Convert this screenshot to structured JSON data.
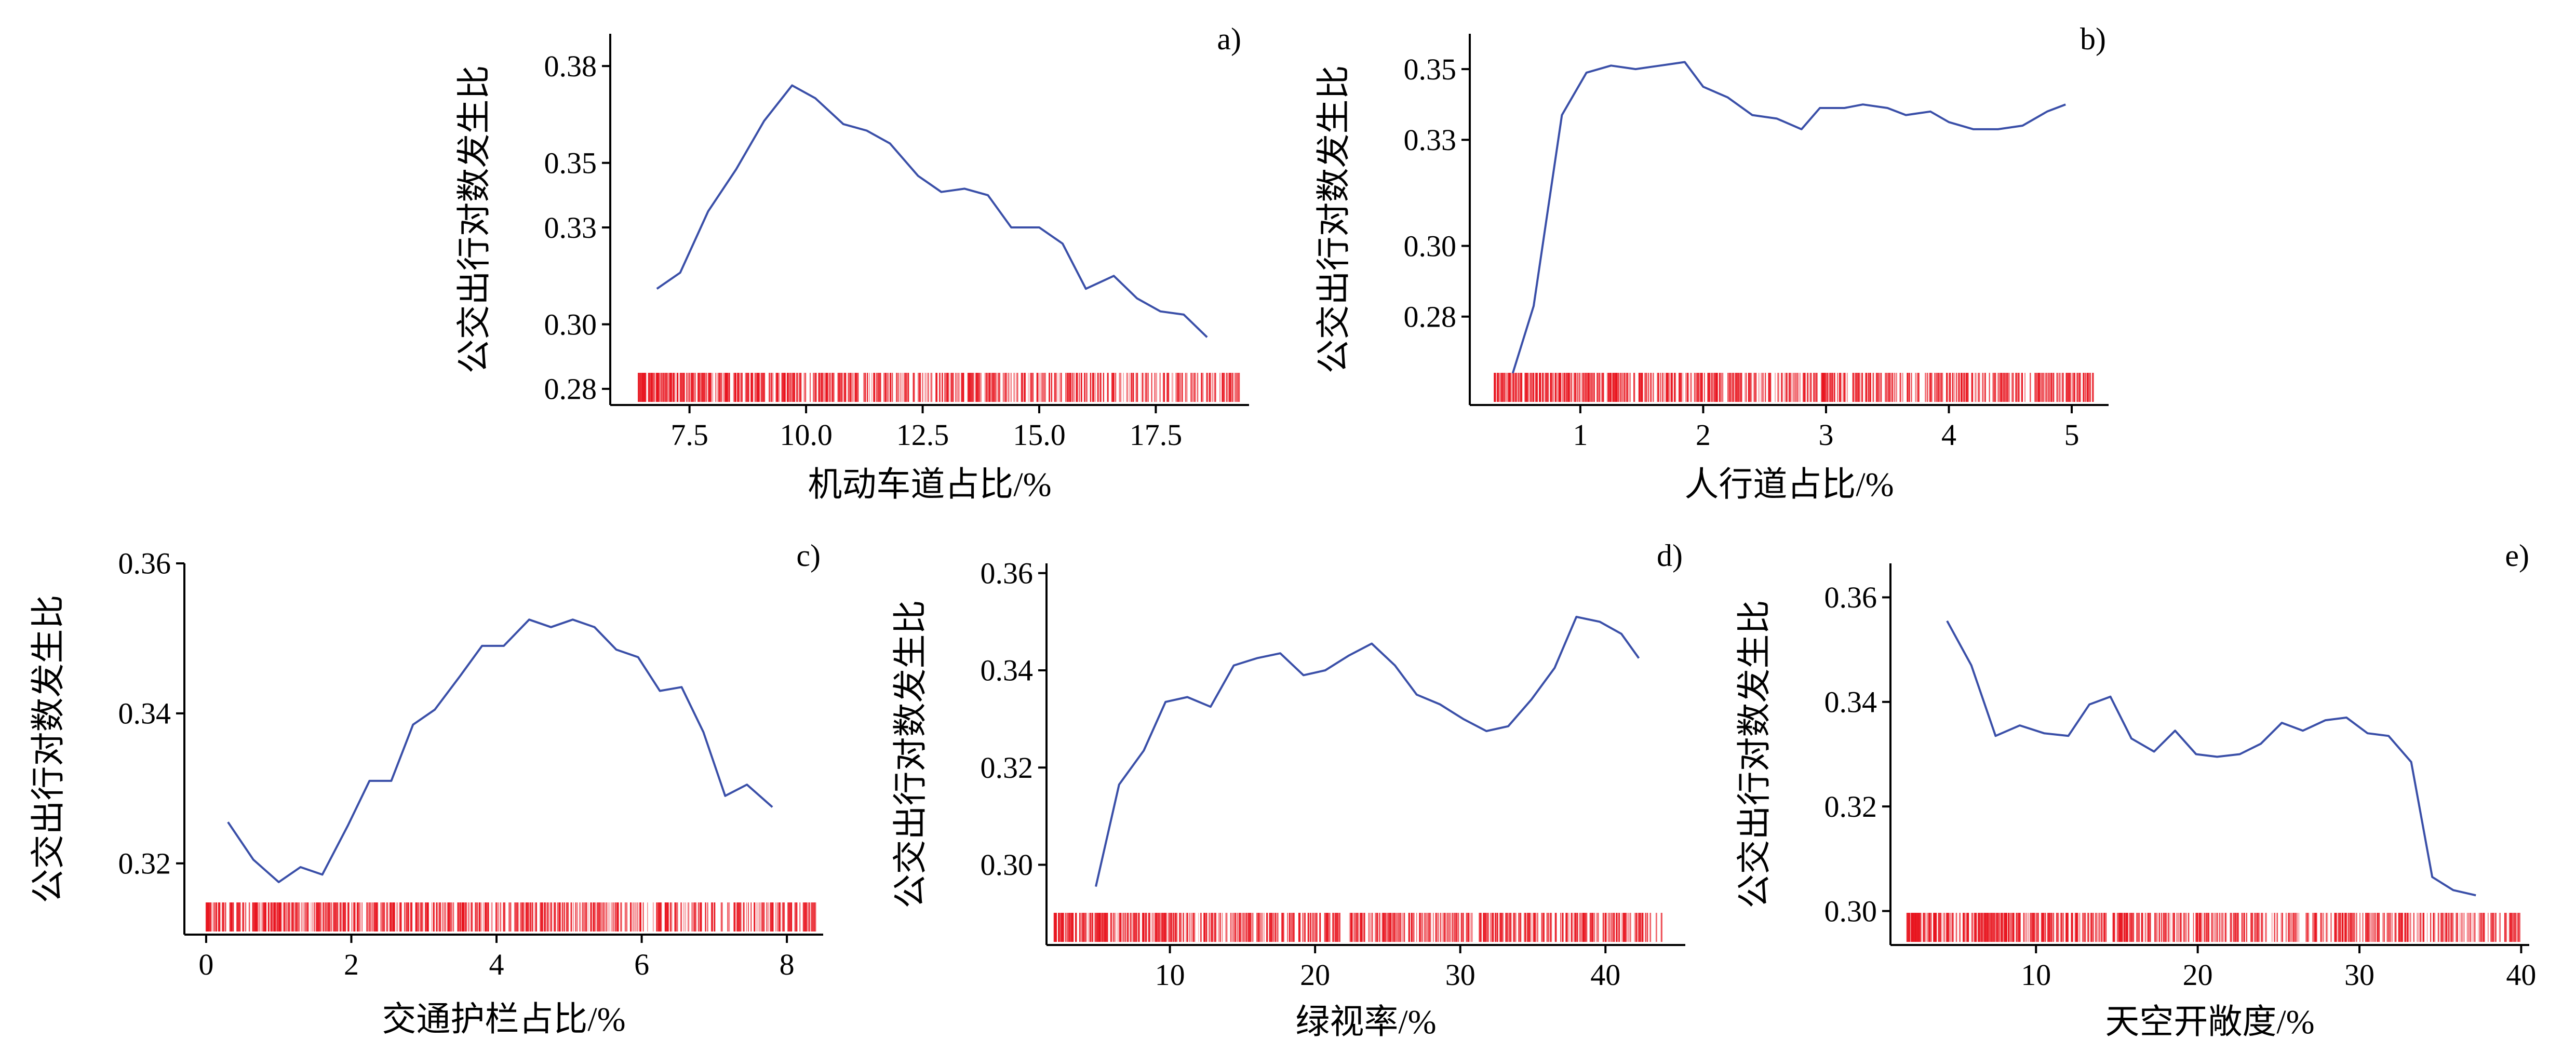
{
  "figure": {
    "y_axis_label_all": "公交出行对数发生比"
  },
  "chart_data": [
    {
      "id": "a",
      "type": "line",
      "panel_label": "a)",
      "xlabel": "机动车道占比/%",
      "ylabel": "公交出行对数发生比",
      "xlim": [
        5.8,
        19.5
      ],
      "ylim": [
        0.275,
        0.39
      ],
      "xticks": [
        7.5,
        10.0,
        12.5,
        15.0,
        17.5
      ],
      "xtick_labels": [
        "7.5",
        "10.0",
        "12.5",
        "15.0",
        "17.5"
      ],
      "yticks": [
        0.28,
        0.3,
        0.33,
        0.35,
        0.38
      ],
      "ytick_labels": [
        "0.28",
        "0.30",
        "0.33",
        "0.35",
        "0.38"
      ],
      "line_color": "#3a4fa8",
      "rug_color": "#e8141e",
      "series": [
        {
          "x": [
            6.8,
            7.3,
            7.9,
            8.5,
            9.1,
            9.7,
            10.2,
            10.8,
            11.3,
            11.8,
            12.4,
            12.9,
            13.4,
            13.9,
            14.4,
            15.0,
            15.5,
            16.0,
            16.6,
            17.1,
            17.6,
            18.1,
            18.6
          ],
          "y": [
            0.311,
            0.316,
            0.335,
            0.348,
            0.363,
            0.374,
            0.37,
            0.362,
            0.36,
            0.356,
            0.346,
            0.341,
            0.342,
            0.34,
            0.33,
            0.33,
            0.325,
            0.311,
            0.315,
            0.308,
            0.304,
            0.303,
            0.296
          ]
        }
      ],
      "rug_range": [
        6.4,
        19.3
      ]
    },
    {
      "id": "b",
      "type": "line",
      "panel_label": "b)",
      "xlabel": "人行道占比/%",
      "ylabel": "公交出行对数发生比",
      "xlim": [
        0.1,
        5.3
      ],
      "ylim": [
        0.255,
        0.36
      ],
      "xticks": [
        1,
        2,
        3,
        4,
        5
      ],
      "xtick_labels": [
        "1",
        "2",
        "3",
        "4",
        "5"
      ],
      "yticks": [
        0.28,
        0.3,
        0.33,
        0.35
      ],
      "ytick_labels": [
        "0.28",
        "0.30",
        "0.33",
        "0.35"
      ],
      "line_color": "#3a4fa8",
      "rug_color": "#e8141e",
      "series": [
        {
          "x": [
            0.45,
            0.62,
            0.85,
            1.05,
            1.25,
            1.45,
            1.65,
            1.85,
            2.0,
            2.2,
            2.4,
            2.6,
            2.8,
            2.95,
            3.15,
            3.3,
            3.5,
            3.65,
            3.85,
            4.0,
            4.2,
            4.4,
            4.6,
            4.8,
            4.95
          ],
          "y": [
            0.264,
            0.283,
            0.337,
            0.349,
            0.351,
            0.35,
            0.351,
            0.352,
            0.345,
            0.342,
            0.337,
            0.336,
            0.333,
            0.339,
            0.339,
            0.34,
            0.339,
            0.337,
            0.338,
            0.335,
            0.333,
            0.333,
            0.334,
            0.338,
            0.34
          ]
        }
      ],
      "rug_range": [
        0.3,
        5.2
      ]
    },
    {
      "id": "c",
      "type": "line",
      "panel_label": "c)",
      "xlabel": "交通护栏占比/%",
      "ylabel": "公交出行对数发生比",
      "xlim": [
        -0.3,
        8.5
      ],
      "ylim": [
        0.3105,
        0.36
      ],
      "xticks": [
        0,
        2,
        4,
        6,
        8
      ],
      "xtick_labels": [
        "0",
        "2",
        "4",
        "6",
        "8"
      ],
      "yticks": [
        0.32,
        0.34,
        0.36
      ],
      "ytick_labels": [
        "0.32",
        "0.34",
        "0.36"
      ],
      "line_color": "#3a4fa8",
      "rug_color": "#e8141e",
      "series": [
        {
          "x": [
            0.3,
            0.65,
            1.0,
            1.3,
            1.6,
            1.95,
            2.25,
            2.55,
            2.85,
            3.15,
            3.5,
            3.8,
            4.1,
            4.45,
            4.75,
            5.05,
            5.35,
            5.65,
            5.95,
            6.25,
            6.55,
            6.85,
            7.15,
            7.45,
            7.8
          ],
          "y": [
            0.3255,
            0.3205,
            0.3175,
            0.3195,
            0.3185,
            0.325,
            0.331,
            0.331,
            0.3385,
            0.3405,
            0.345,
            0.349,
            0.349,
            0.3525,
            0.3515,
            0.3525,
            0.3515,
            0.3485,
            0.3475,
            0.343,
            0.3435,
            0.3375,
            0.329,
            0.3305,
            0.3275
          ]
        }
      ],
      "rug_range": [
        0.0,
        8.4
      ]
    },
    {
      "id": "d",
      "type": "line",
      "panel_label": "d)",
      "xlabel": "绿视率/%",
      "ylabel": "公交出行对数发生比",
      "xlim": [
        1.5,
        45.5
      ],
      "ylim": [
        0.2835,
        0.362
      ],
      "xticks": [
        10,
        20,
        30,
        40
      ],
      "xtick_labels": [
        "10",
        "20",
        "30",
        "40"
      ],
      "yticks": [
        0.3,
        0.32,
        0.34,
        0.36
      ],
      "ytick_labels": [
        "0.30",
        "0.32",
        "0.34",
        "0.36"
      ],
      "line_color": "#3a4fa8",
      "rug_color": "#e8141e",
      "series": [
        {
          "x": [
            4.9,
            6.5,
            8.2,
            9.7,
            11.2,
            12.8,
            14.4,
            16.0,
            17.6,
            19.2,
            20.7,
            22.3,
            23.9,
            25.5,
            27.0,
            28.6,
            30.2,
            31.8,
            33.3,
            34.9,
            36.5,
            38.0,
            39.6,
            41.1,
            42.3
          ],
          "y": [
            0.2955,
            0.3165,
            0.3235,
            0.3335,
            0.3345,
            0.3325,
            0.341,
            0.3425,
            0.3435,
            0.339,
            0.34,
            0.343,
            0.3455,
            0.341,
            0.335,
            0.333,
            0.33,
            0.3275,
            0.3285,
            0.334,
            0.3405,
            0.351,
            0.35,
            0.3475,
            0.3425
          ]
        }
      ],
      "rug_range": [
        2.0,
        44.0
      ]
    },
    {
      "id": "e",
      "type": "line",
      "panel_label": "e)",
      "xlabel": "天空开敞度/%",
      "ylabel": "公交出行对数发生比",
      "xlim": [
        1.0,
        40.5
      ],
      "ylim": [
        0.2935,
        0.3665
      ],
      "xticks": [
        10,
        20,
        30,
        40
      ],
      "xtick_labels": [
        "10",
        "20",
        "30",
        "40"
      ],
      "yticks": [
        0.3,
        0.32,
        0.34,
        0.36
      ],
      "ytick_labels": [
        "0.30",
        "0.32",
        "0.34",
        "0.36"
      ],
      "line_color": "#3a4fa8",
      "rug_color": "#e8141e",
      "series": [
        {
          "x": [
            4.5,
            6.0,
            7.5,
            9.0,
            10.5,
            12.0,
            13.3,
            14.6,
            15.9,
            17.3,
            18.6,
            19.9,
            21.2,
            22.6,
            23.9,
            25.2,
            26.5,
            27.9,
            29.2,
            30.5,
            31.8,
            33.2,
            34.5,
            35.8,
            37.2
          ],
          "y": [
            0.3555,
            0.347,
            0.3335,
            0.3355,
            0.334,
            0.3335,
            0.3395,
            0.341,
            0.333,
            0.3305,
            0.3345,
            0.33,
            0.3295,
            0.33,
            0.332,
            0.336,
            0.3345,
            0.3365,
            0.337,
            0.334,
            0.3335,
            0.3285,
            0.3065,
            0.304,
            0.303
          ]
        }
      ],
      "rug_range": [
        2.0,
        40.0
      ]
    }
  ]
}
